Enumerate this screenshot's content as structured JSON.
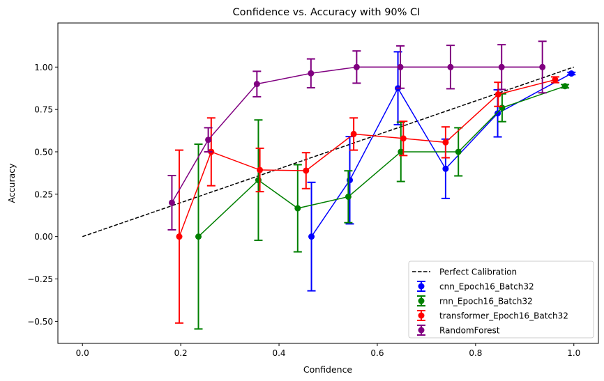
{
  "chart_data": {
    "type": "line",
    "title": "Confidence vs. Accuracy with 90% CI",
    "xlabel": "Confidence",
    "ylabel": "Accuracy",
    "xlim": [
      -0.05,
      1.05
    ],
    "ylim": [
      -0.63,
      1.26
    ],
    "xticks": [
      0.0,
      0.2,
      0.4,
      0.6,
      0.8,
      1.0
    ],
    "xtick_labels": [
      "0.0",
      "0.2",
      "0.4",
      "0.6",
      "0.8",
      "1.0"
    ],
    "yticks": [
      -0.5,
      -0.25,
      0.0,
      0.25,
      0.5,
      0.75,
      1.0
    ],
    "ytick_labels": [
      "−0.50",
      "−0.25",
      "0.00",
      "0.25",
      "0.50",
      "0.75",
      "1.00"
    ],
    "grid": false,
    "legend_position": "lower-right",
    "reference_line": {
      "name": "Perfect Calibration",
      "color": "#000000",
      "style": "dashed",
      "x": [
        0.0,
        1.0
      ],
      "y": [
        0.0,
        1.0
      ]
    },
    "series": [
      {
        "name": "cnn_Epoch16_Batch32",
        "color": "#0000ff",
        "x": [
          0.466,
          0.544,
          0.642,
          0.739,
          0.845,
          0.995
        ],
        "y": [
          0.0,
          0.333,
          0.875,
          0.4,
          0.727,
          0.962
        ],
        "ci_low": [
          -0.32,
          0.075,
          0.66,
          0.225,
          0.588,
          0.955
        ],
        "ci_high": [
          0.32,
          0.59,
          1.09,
          0.575,
          0.866,
          0.969
        ]
      },
      {
        "name": "rnn_Epoch16_Batch32",
        "color": "#008000",
        "x": [
          0.236,
          0.358,
          0.438,
          0.541,
          0.648,
          0.765,
          0.854,
          0.982
        ],
        "y": [
          0.0,
          0.333,
          0.167,
          0.235,
          0.5,
          0.5,
          0.76,
          0.887
        ],
        "ci_low": [
          -0.545,
          -0.022,
          -0.09,
          0.082,
          0.325,
          0.358,
          0.678,
          0.877
        ],
        "ci_high": [
          0.545,
          0.688,
          0.424,
          0.388,
          0.675,
          0.642,
          0.842,
          0.897
        ]
      },
      {
        "name": "transformer_Epoch16_Batch32",
        "color": "#ff0000",
        "x": [
          0.197,
          0.262,
          0.361,
          0.455,
          0.552,
          0.653,
          0.739,
          0.846,
          0.962
        ],
        "y": [
          0.0,
          0.5,
          0.393,
          0.389,
          0.605,
          0.579,
          0.556,
          0.839,
          0.925
        ],
        "ci_low": [
          -0.51,
          0.3,
          0.265,
          0.283,
          0.51,
          0.478,
          0.465,
          0.768,
          0.908
        ],
        "ci_high": [
          0.51,
          0.7,
          0.521,
          0.495,
          0.7,
          0.68,
          0.647,
          0.91,
          0.942
        ]
      },
      {
        "name": "RandomForest",
        "color": "#800080",
        "x": [
          0.182,
          0.256,
          0.355,
          0.465,
          0.558,
          0.647,
          0.749,
          0.853,
          0.936
        ],
        "y": [
          0.2,
          0.571,
          0.9,
          0.963,
          1.0,
          1.0,
          1.0,
          1.0,
          1.0
        ],
        "ci_low": [
          0.04,
          0.5,
          0.825,
          0.878,
          0.905,
          0.875,
          0.872,
          0.868,
          0.848
        ],
        "ci_high": [
          0.36,
          0.642,
          0.975,
          1.048,
          1.095,
          1.125,
          1.128,
          1.132,
          1.152
        ]
      }
    ]
  }
}
